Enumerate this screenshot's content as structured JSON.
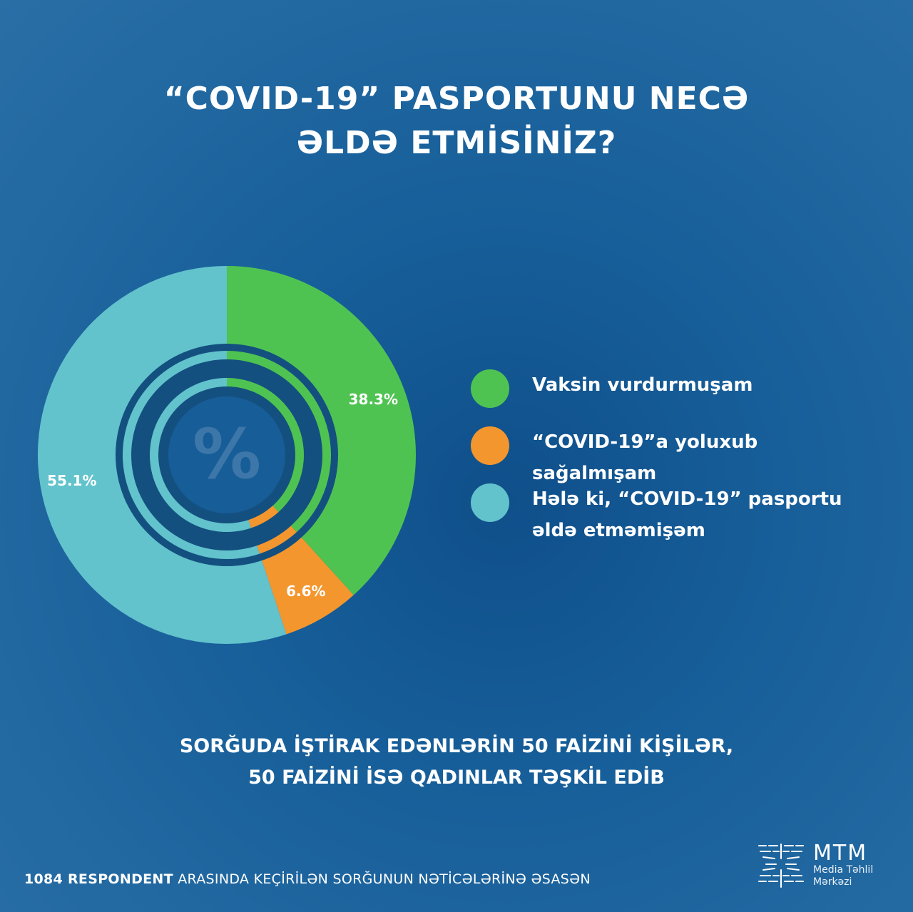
{
  "title": {
    "line1": "“COVID-19” PASPORTUNU NECƏ",
    "line2": "ƏLDƏ ETMİSİNİZ?"
  },
  "chart_data": {
    "type": "pie",
    "title": "“COVID-19” PASPORTUNU NECƏ ƏLDƏ ETMİSİNİZ?",
    "center_symbol": "%",
    "series": [
      {
        "name": "Vaksin vurdurmuşam",
        "value": 38.3,
        "label": "38.3%",
        "color": "#4fc352"
      },
      {
        "name": "“COVID-19”a yoluxub sağalmışam",
        "value": 6.6,
        "label": "6.6%",
        "color": "#f4962e"
      },
      {
        "name": "Hələ ki, “COVID-19” pasportu əldə etməmişəm",
        "value": 55.1,
        "label": "55.1%",
        "color": "#62c3cc"
      }
    ],
    "legend_position": "right"
  },
  "legend": {
    "items": [
      {
        "line1": "Vaksin vurdurmuşam",
        "line2": "",
        "color": "#4fc352"
      },
      {
        "line1": "“COVID-19”a yoluxub sağalmışam",
        "line2": "",
        "color": "#f4962e"
      },
      {
        "line1": "Hələ ki, “COVID-19” pasportu",
        "line2": "əldə etməmişəm",
        "color": "#62c3cc"
      }
    ]
  },
  "footnote": {
    "line1": "SORĞUDA İŞTİRAK EDƏNLƏRİN 50 FAİZİNİ KİŞİLƏR,",
    "line2": "50 FAİZİNİ İSƏ QADINLAR TƏŞKİL EDİB"
  },
  "source": {
    "bold": "1084 RESPONDENT",
    "rest": " ARASINDA KEÇİRİLƏN SORĞUNUN NƏTİCƏLƏRİNƏ ƏSASƏN"
  },
  "logo": {
    "name": "MTM",
    "sub_line1": "Media Təhlil",
    "sub_line2": "Mərkəzi"
  },
  "colors": {
    "background": "#175f9a",
    "ring_dark": "#14507f"
  }
}
